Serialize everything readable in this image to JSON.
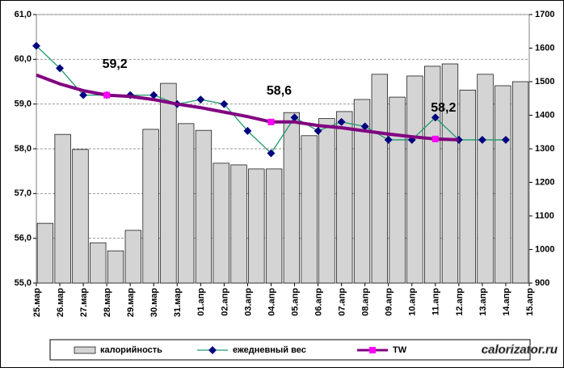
{
  "chart_data": [
    {
      "type": "bar",
      "categories": [
        null,
        null,
        null,
        null,
        null,
        null,
        null,
        null,
        null,
        null,
        null,
        null,
        null,
        null,
        null,
        null,
        null,
        null,
        null,
        null,
        null,
        null,
        null,
        null,
        null,
        null,
        null,
        null
      ],
      "series": [
        {
          "name": "калорийность",
          "color": "#d4d4d4",
          "values": [
            1078,
            1343,
            1298,
            1020,
            996,
            1057,
            1358,
            1495,
            1375,
            1355,
            1257,
            1252,
            1240,
            1240,
            1408,
            1339,
            1390,
            1411,
            1447,
            1522,
            1454,
            1517,
            1546,
            1553,
            1475,
            1522,
            1488,
            1500
          ]
        }
      ],
      "ylim": [
        900,
        1700
      ],
      "yticks": [
        900,
        1000,
        1100,
        1200,
        1300,
        1400,
        1500,
        1600,
        1700
      ]
    },
    {
      "type": "line",
      "categories": [
        "25.мар",
        "26.мар",
        "27.мар",
        "28.мар",
        "29.мар",
        "30.мар",
        "31.мар",
        "01.апр",
        "02.апр",
        "03.апр",
        "04.апр",
        "05.апр",
        "06.апр",
        "07.апр",
        "08.апр",
        "09.апр",
        "10.апр",
        "11.апр",
        "12.апр",
        "13.апр",
        "14.апр",
        "15.апр"
      ],
      "series": [
        {
          "name": "ежедневный вес",
          "color": "#1f9a6e",
          "values": [
            60.3,
            59.8,
            59.2,
            59.2,
            59.2,
            59.2,
            59.0,
            59.1,
            59.0,
            58.4,
            57.9,
            58.7,
            58.4,
            58.6,
            58.5,
            58.2,
            58.2,
            58.7,
            58.2,
            58.2,
            58.2,
            null
          ]
        },
        {
          "name": "TW",
          "color": "#800080",
          "values": [
            59.65,
            59.45,
            59.3,
            59.2,
            59.17,
            59.1,
            59.0,
            58.92,
            58.82,
            58.72,
            58.6,
            58.6,
            58.52,
            58.47,
            58.4,
            58.33,
            58.27,
            58.22,
            58.2,
            null,
            null,
            null
          ],
          "value_labels": [
            null,
            null,
            null,
            "59,2",
            null,
            null,
            null,
            null,
            null,
            null,
            "58,6",
            null,
            null,
            null,
            null,
            null,
            null,
            "58,2",
            null,
            null,
            null,
            null
          ]
        }
      ],
      "ylim": [
        55,
        61
      ],
      "yticks": [
        {
          "value": 55,
          "label": "55,0"
        },
        {
          "value": 56,
          "label": "56,0"
        },
        {
          "value": 57,
          "label": "57,0"
        },
        {
          "value": 58,
          "label": "58,0"
        },
        {
          "value": 59,
          "label": "59,0"
        },
        {
          "value": 60,
          "label": "60,0"
        },
        {
          "value": 61,
          "label": "61,0"
        }
      ],
      "grid": true,
      "watermark": "calorizator.ru"
    }
  ]
}
